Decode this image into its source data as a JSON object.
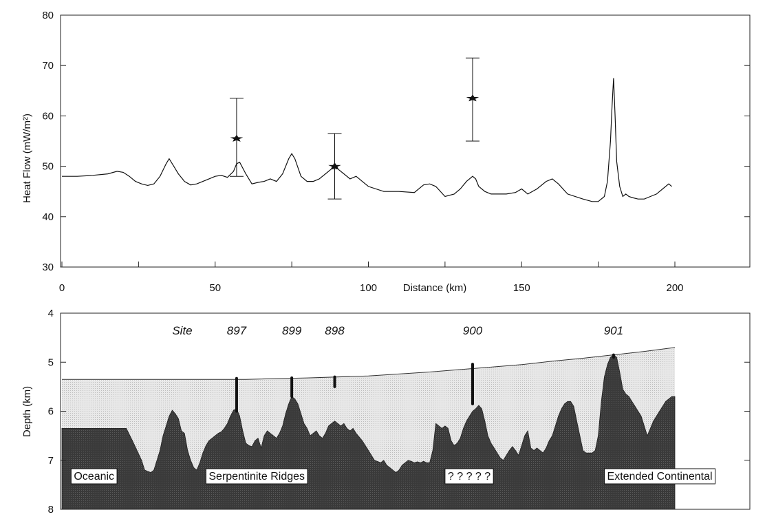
{
  "chart_data": [
    {
      "type": "line",
      "ylabel": "Heat Flow (mW/m²)",
      "xlabel": "Distance (km)",
      "xlim": [
        0,
        225
      ],
      "ylim": [
        30,
        80
      ],
      "x_ticks": [
        0,
        50,
        100,
        150,
        200
      ],
      "x_tick_labels": [
        "0",
        "50",
        "100",
        "150",
        "200"
      ],
      "y_ticks": [
        30,
        40,
        50,
        60,
        70,
        80
      ],
      "y_tick_labels": [
        "30",
        "40",
        "50",
        "60",
        "70",
        "80"
      ],
      "series": [
        {
          "x": [
            0,
            5,
            10,
            15,
            18,
            20,
            22,
            24,
            26,
            28,
            30,
            32,
            34,
            35,
            36,
            38,
            40,
            42,
            44,
            46,
            48,
            50,
            52,
            54,
            56,
            57,
            58,
            60,
            62,
            64,
            66,
            68,
            70,
            72,
            74,
            75,
            76,
            78,
            80,
            82,
            84,
            86,
            88,
            90,
            92,
            94,
            96,
            98,
            100,
            105,
            110,
            115,
            118,
            120,
            122,
            125,
            128,
            130,
            132,
            134,
            135,
            136,
            138,
            140,
            145,
            148,
            150,
            152,
            155,
            158,
            160,
            162,
            165,
            170,
            173,
            175,
            177,
            178,
            179,
            179.5,
            180,
            180.5,
            181,
            182,
            183,
            184,
            185,
            186,
            188,
            190,
            192,
            194,
            196,
            198,
            199
          ],
          "y": [
            48,
            48,
            48.2,
            48.5,
            49,
            48.8,
            48,
            47,
            46.5,
            46.2,
            46.5,
            48,
            50.5,
            51.5,
            50.5,
            48.5,
            47,
            46.3,
            46.5,
            47,
            47.5,
            48,
            48.2,
            47.8,
            49,
            50.5,
            50.8,
            48.5,
            46.5,
            46.8,
            47,
            47.5,
            47,
            48.5,
            51.5,
            52.5,
            51.5,
            48,
            47,
            47,
            47.5,
            48.5,
            49.5,
            49.5,
            48.5,
            47.5,
            48,
            47,
            46,
            45,
            45,
            44.8,
            46.3,
            46.5,
            46,
            44,
            44.5,
            45.5,
            47,
            48,
            47.5,
            46,
            45,
            44.5,
            44.5,
            44.8,
            45.5,
            44.5,
            45.5,
            47,
            47.5,
            46.5,
            44.5,
            43.5,
            43,
            43,
            44,
            47,
            55,
            62,
            67.5,
            60,
            51,
            46,
            44,
            44.5,
            44,
            43.8,
            43.5,
            43.5,
            44,
            44.5,
            45.5,
            46.5,
            46
          ]
        }
      ],
      "measurements": [
        {
          "x": 57,
          "y": 55.5,
          "ylow": 48,
          "yhigh": 63.5
        },
        {
          "x": 89,
          "y": 50,
          "ylow": 43.5,
          "yhigh": 56.5
        },
        {
          "x": 134,
          "y": 63.5,
          "ylow": 55,
          "yhigh": 71.5
        }
      ]
    },
    {
      "type": "area",
      "ylabel": "Depth (km)",
      "xlim": [
        0,
        225
      ],
      "ylim": [
        8,
        4
      ],
      "y_ticks": [
        4,
        5,
        6,
        7,
        8
      ],
      "y_tick_labels": [
        "4",
        "5",
        "6",
        "7",
        "8"
      ],
      "seafloor": {
        "x": [
          0,
          20,
          40,
          60,
          80,
          100,
          120,
          140,
          150,
          160,
          170,
          180,
          190,
          200
        ],
        "depth": [
          5.35,
          5.35,
          5.35,
          5.35,
          5.32,
          5.28,
          5.2,
          5.1,
          5.05,
          4.98,
          4.92,
          4.85,
          4.78,
          4.7
        ]
      },
      "basement": {
        "x": [
          0,
          21,
          23,
          26,
          27,
          29,
          30,
          32,
          33,
          34,
          35,
          36,
          37,
          38,
          39,
          40,
          41,
          42,
          43,
          44,
          45,
          46,
          47,
          48,
          49,
          50,
          51,
          52,
          53,
          54,
          55,
          56,
          57,
          58,
          59,
          60,
          61,
          62,
          63,
          64,
          65,
          66,
          67,
          68,
          69,
          70,
          71,
          72,
          73,
          74,
          75,
          76,
          77,
          78,
          79,
          80,
          81,
          82,
          83,
          84,
          85,
          86,
          87,
          88,
          89,
          90,
          91,
          92,
          93,
          94,
          95,
          96,
          98,
          100,
          102,
          104,
          105,
          106,
          107,
          108,
          109,
          110,
          111,
          112,
          113,
          114,
          115,
          116,
          117,
          118,
          119,
          120,
          121,
          122,
          123,
          124,
          125,
          126,
          127,
          128,
          129,
          130,
          131,
          132,
          133,
          134,
          135,
          136,
          137,
          138,
          139,
          140,
          141,
          142,
          143,
          144,
          145,
          146,
          147,
          148,
          149,
          150,
          151,
          152,
          153,
          154,
          155,
          156,
          157,
          158,
          159,
          160,
          161,
          162,
          163,
          164,
          165,
          166,
          167,
          168,
          169,
          170,
          171,
          172,
          173,
          174,
          175,
          176,
          177,
          178,
          179,
          180,
          181,
          182,
          183,
          184,
          185,
          186,
          187,
          188,
          189,
          190,
          191,
          192,
          193,
          194,
          195,
          196,
          197,
          198,
          199,
          200
        ],
        "depth": [
          6.35,
          6.35,
          6.6,
          7,
          7.2,
          7.25,
          7.2,
          6.8,
          6.5,
          6.3,
          6.1,
          5.98,
          6.05,
          6.15,
          6.4,
          6.45,
          6.8,
          7,
          7.15,
          7.2,
          7.05,
          6.85,
          6.7,
          6.6,
          6.55,
          6.5,
          6.45,
          6.42,
          6.35,
          6.25,
          6.1,
          5.98,
          5.95,
          6.1,
          6.4,
          6.65,
          6.7,
          6.72,
          6.6,
          6.55,
          6.75,
          6.5,
          6.4,
          6.45,
          6.5,
          6.55,
          6.45,
          6.3,
          6.05,
          5.85,
          5.7,
          5.75,
          5.85,
          6.05,
          6.25,
          6.35,
          6.5,
          6.45,
          6.4,
          6.5,
          6.55,
          6.45,
          6.3,
          6.25,
          6.2,
          6.25,
          6.3,
          6.25,
          6.35,
          6.4,
          6.35,
          6.45,
          6.6,
          6.8,
          7,
          7.05,
          7,
          7.1,
          7.15,
          7.2,
          7.25,
          7.2,
          7.1,
          7.05,
          7,
          7.02,
          7.05,
          7.03,
          7.05,
          7.02,
          7.05,
          7.05,
          6.8,
          6.25,
          6.3,
          6.35,
          6.3,
          6.35,
          6.6,
          6.7,
          6.65,
          6.55,
          6.35,
          6.2,
          6.1,
          6,
          5.95,
          5.88,
          5.95,
          6.2,
          6.5,
          6.65,
          6.75,
          6.85,
          6.95,
          7,
          6.9,
          6.8,
          6.72,
          6.8,
          6.9,
          6.7,
          6.5,
          6.4,
          6.75,
          6.8,
          6.75,
          6.8,
          6.85,
          6.75,
          6.6,
          6.5,
          6.3,
          6.1,
          5.95,
          5.85,
          5.8,
          5.8,
          5.9,
          6.2,
          6.5,
          6.8,
          6.85,
          6.85,
          6.85,
          6.8,
          6.5,
          5.8,
          5.3,
          5.05,
          4.9,
          4.85,
          4.9,
          5.2,
          5.55,
          5.65,
          5.7,
          5.8,
          5.9,
          6.0,
          6.1,
          6.3,
          6.5,
          6.35,
          6.2,
          6.1,
          6.0,
          5.9,
          5.8,
          5.75,
          5.7,
          5.7
        ]
      },
      "sites": [
        {
          "label": "897",
          "x": 57,
          "top": 5.33,
          "bottom": 6.0
        },
        {
          "label": "899",
          "x": 75,
          "top": 5.32,
          "bottom": 5.7
        },
        {
          "label": "898",
          "x": 89,
          "top": 5.3,
          "bottom": 5.5
        },
        {
          "label": "900",
          "x": 134,
          "top": 5.04,
          "bottom": 5.85
        },
        {
          "label": "901",
          "x": 180,
          "top": 4.85,
          "bottom": 4.9
        }
      ],
      "site_heading": "Site",
      "regions": [
        {
          "label": "Oceanic",
          "x": 3
        },
        {
          "label": "Serpentinite Ridges",
          "x": 47
        },
        {
          "label": "? ? ? ? ?",
          "x": 125
        },
        {
          "label": "Extended Continental",
          "x": 177
        }
      ]
    }
  ]
}
